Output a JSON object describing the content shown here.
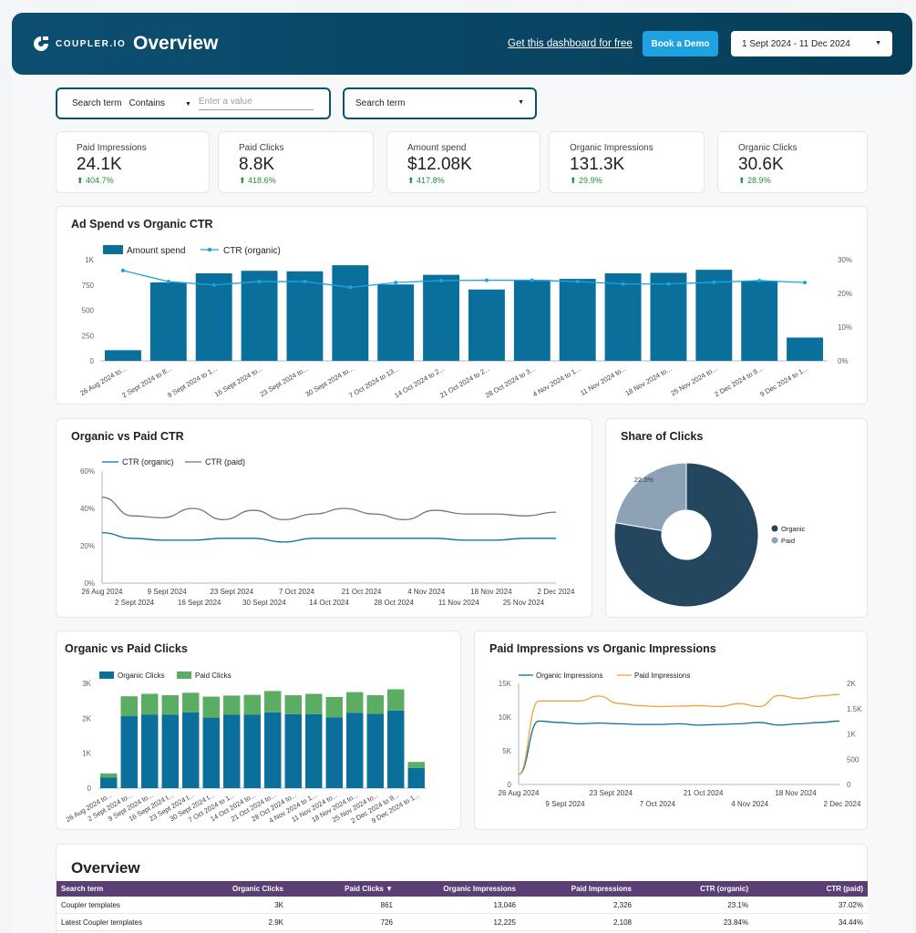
{
  "header": {
    "logo_text": "COUPLER.IO",
    "title": "Overview",
    "link": "Get this dashboard for free",
    "demo_button": "Book a Demo",
    "date_range": "1 Sept 2024 - 11 Dec 2024"
  },
  "filters": {
    "term_label": "Search term",
    "operator": "Contains",
    "placeholder": "Enter a value",
    "dropdown": "Search term"
  },
  "kpis": [
    {
      "label": "Paid Impressions",
      "value": "24.1K",
      "delta": "404.7%"
    },
    {
      "label": "Paid Clicks",
      "value": "8.8K",
      "delta": "418.6%"
    },
    {
      "label": "Amount spend",
      "value": "$12.08K",
      "delta": "417.8%"
    },
    {
      "label": "Organic Impressions",
      "value": "131.3K",
      "delta": "29.9%"
    },
    {
      "label": "Organic Clicks",
      "value": "30.6K",
      "delta": "28.9%"
    }
  ],
  "colors": {
    "accent": "#0a6f9a",
    "line_organic": "#1fa3e0",
    "paid_green": "#5aad62",
    "paid_orange": "#f0a33c",
    "donut_dark": "#24465f",
    "donut_light": "#8da2b4",
    "table_header": "#5a3f74"
  },
  "chart_data": [
    {
      "type": "bar",
      "title": "Ad Spend vs Organic CTR",
      "legend": [
        "Amount spend",
        "CTR (organic)"
      ],
      "categories": [
        "26 Aug 2024 to...",
        "2 Sept 2024 to 8...",
        "9 Sept 2024 to 1...",
        "16 Sept 2024 to...",
        "23 Sept 2024 to...",
        "30 Sept 2024 to...",
        "7 Oct 2024 to 13...",
        "14 Oct 2024 to 2...",
        "21 Oct 2024 to 2...",
        "28 Oct 2024 to 3...",
        "4 Nov 2024 to 1...",
        "11 Nov 2024 to...",
        "18 Nov 2024 to...",
        "25 Nov 2024 to...",
        "2 Dec 2024 to 8...",
        "9 Dec 2024 to 1..."
      ],
      "series": [
        {
          "name": "Amount spend",
          "values": [
            105,
            775,
            865,
            890,
            885,
            945,
            755,
            850,
            705,
            800,
            810,
            865,
            870,
            900,
            790,
            230
          ]
        },
        {
          "name": "CTR (organic)",
          "values": [
            26.8,
            23.5,
            22.5,
            23.5,
            23.5,
            21.8,
            23.2,
            23.8,
            23.9,
            23.9,
            23.5,
            22.8,
            22.8,
            23.3,
            23.8,
            23.2
          ]
        }
      ],
      "y_ticks": [
        "0",
        "250",
        "500",
        "750",
        "1K"
      ],
      "y2_ticks": [
        "0%",
        "10%",
        "20%",
        "30%"
      ],
      "ylim": [
        0,
        1000
      ],
      "y2lim": [
        0,
        30
      ]
    },
    {
      "type": "line",
      "title": "Organic vs Paid CTR",
      "legend": [
        "CTR (organic)",
        "CTR (paid)"
      ],
      "series": [
        {
          "name": "CTR (organic)",
          "values": [
            27,
            24,
            23,
            23,
            24,
            24,
            22,
            24,
            24,
            24,
            24,
            24,
            23,
            23,
            24,
            24
          ]
        },
        {
          "name": "CTR (paid)",
          "values": [
            46,
            36,
            35,
            40,
            34,
            39,
            34,
            37,
            40,
            37,
            34,
            39,
            37,
            37,
            36,
            38
          ]
        }
      ],
      "y_ticks": [
        "0%",
        "20%",
        "40%",
        "60%"
      ],
      "x_ticks_top": [
        "26 Aug 2024",
        "9 Sept 2024",
        "23 Sept 2024",
        "7 Oct 2024",
        "21 Oct 2024",
        "4 Nov 2024",
        "18 Nov 2024",
        "2 Dec 2024"
      ],
      "x_ticks_bottom": [
        "2 Sept 2024",
        "16 Sept 2024",
        "30 Sept 2024",
        "14 Oct 2024",
        "28 Oct 2024",
        "11 Nov 2024",
        "25 Nov 2024"
      ],
      "ylim": [
        0,
        60
      ]
    },
    {
      "type": "pie",
      "title": "Share of Clicks",
      "labels": [
        "Organic",
        "Paid"
      ],
      "values": [
        77.7,
        22.3
      ],
      "value_labels": [
        "77.7%",
        "22.3%"
      ]
    },
    {
      "type": "bar",
      "title": "Organic vs Paid Clicks",
      "legend": [
        "Organic Clicks",
        "Paid Clicks"
      ],
      "categories": [
        "26 Aug 2024 to...",
        "2 Sept 2024 to...",
        "9 Sept 2024 to...",
        "16 Sept 2024 t...",
        "23 Sept 2024 t...",
        "30 Sept 2024 t...",
        "7 Oct 2024 to 1...",
        "14 Oct 2024 to...",
        "21 Oct 2024 to...",
        "28 Oct 2024 to...",
        "4 Nov 2024 to 1...",
        "11 Nov 2024 to...",
        "18 Nov 2024 to...",
        "25 Nov 2024 to...",
        "2 Dec 2024 to 8...",
        "9 Dec 2024 to 1..."
      ],
      "series": [
        {
          "name": "Organic Clicks",
          "values": [
            300,
            2060,
            2100,
            2100,
            2170,
            2020,
            2100,
            2100,
            2170,
            2120,
            2120,
            2030,
            2160,
            2130,
            2220,
            580
          ]
        },
        {
          "name": "Paid Clicks",
          "values": [
            120,
            570,
            600,
            560,
            560,
            600,
            550,
            570,
            610,
            540,
            580,
            580,
            590,
            530,
            610,
            170
          ]
        }
      ],
      "y_ticks": [
        "0",
        "1K",
        "2K",
        "3K"
      ],
      "ylim": [
        0,
        3000
      ]
    },
    {
      "type": "line",
      "title": "Paid Impressions vs Organic Impressions",
      "legend": [
        "Organic Impressions",
        "Paid Impressions"
      ],
      "series": [
        {
          "name": "Organic Impressions",
          "values": [
            1500,
            9400,
            9200,
            9000,
            9100,
            9000,
            8900,
            8900,
            9000,
            8800,
            8900,
            9000,
            9200,
            8800,
            9000,
            9200,
            9400
          ]
        },
        {
          "name": "Paid Impressions",
          "values": [
            200,
            1650,
            1650,
            1650,
            1750,
            1600,
            1560,
            1540,
            1550,
            1560,
            1540,
            1600,
            1540,
            1760,
            1700,
            1750,
            1780
          ]
        }
      ],
      "y_ticks": [
        "0",
        "5K",
        "10K",
        "15K"
      ],
      "y2_ticks": [
        "0",
        "500",
        "1K",
        "1.5K",
        "2K"
      ],
      "x_ticks_top": [
        "26 Aug 2024",
        "23 Sept 2024",
        "21 Oct 2024",
        "18 Nov 2024"
      ],
      "x_ticks_bottom": [
        "9 Sept 2024",
        "7 Oct 2024",
        "4 Nov 2024",
        "2 Dec 2024"
      ],
      "ylim": [
        0,
        15000
      ],
      "y2lim": [
        0,
        2000
      ]
    }
  ],
  "table": {
    "title": "Overview",
    "columns": [
      "Search term",
      "Organic Clicks",
      "Paid Clicks ▼",
      "Organic Impressions",
      "Paid Impressions",
      "CTR (organic)",
      "CTR (paid)"
    ],
    "rows": [
      [
        "Coupler templates",
        "3K",
        "861",
        "13,046",
        "2,326",
        "23.1%",
        "37.02%"
      ],
      [
        "Latest Coupler templates",
        "2.9K",
        "726",
        "12,225",
        "2,108",
        "23.84%",
        "34.44%"
      ]
    ]
  }
}
